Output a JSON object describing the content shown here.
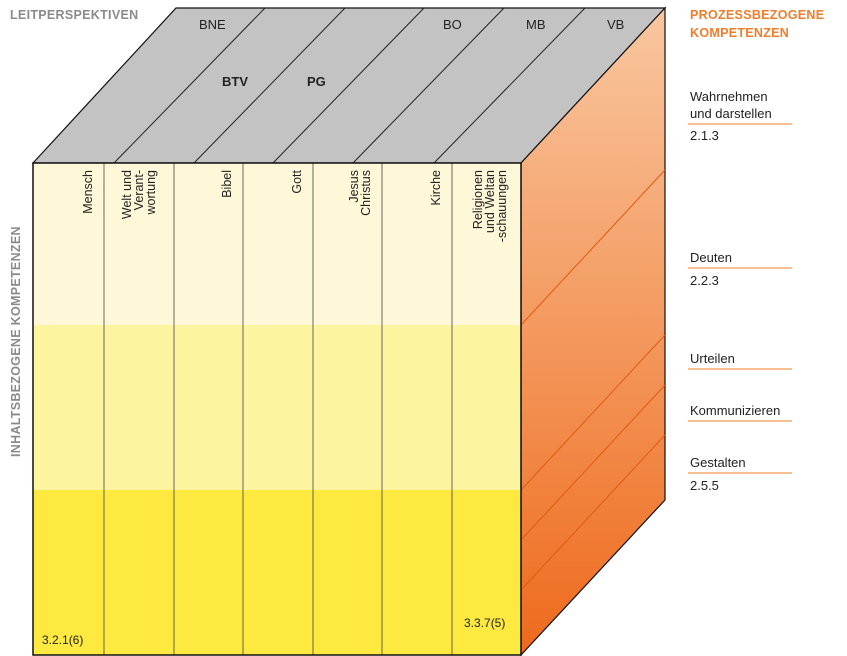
{
  "header": {
    "leitperspektiven": "LEITPERSPEKTIVEN",
    "prozess_line1": "PROZESSBEZOGENE",
    "prozess_line2": "KOMPETENZEN",
    "inhalt": "INHALTSBEZOGENE KOMPETENZEN"
  },
  "top_labels": {
    "bne": "BNE",
    "btv": "BTV",
    "pg": "PG",
    "bo": "BO",
    "mb": "MB",
    "vb": "VB"
  },
  "columns": [
    {
      "line1": "Mensch"
    },
    {
      "line1": "Welt und",
      "line2": "Verant-",
      "line3": "wortung"
    },
    {
      "line1": "Bibel"
    },
    {
      "line1": "Gott"
    },
    {
      "line1": "Jesus",
      "line2": "Christus"
    },
    {
      "line1": "Kirche"
    },
    {
      "line1": "Religionen",
      "line2": "und Weltan",
      "line3": "-schauungen"
    }
  ],
  "process": {
    "wahrnehmen1": "Wahrnehmen",
    "wahrnehmen2": "und darstellen",
    "wahrnehmen_code": "2.1.3",
    "deuten": "Deuten",
    "deuten_code": "2.2.3",
    "urteilen": "Urteilen",
    "kommunizieren": "Kommunizieren",
    "gestalten": "Gestalten",
    "gestalten_code": "2.5.5"
  },
  "codes": {
    "left": "3.2.1(6)",
    "right": "3.3.7(5)"
  },
  "colors": {
    "top_face": "#c3c3c3",
    "right_face_light": "#f9c79f",
    "right_face_dark": "#ee6a1c",
    "band_light": "#fef8d9",
    "band_mid": "#fdf4a0",
    "band_strong": "#fde940",
    "accent_orange": "#ef7d2a"
  }
}
